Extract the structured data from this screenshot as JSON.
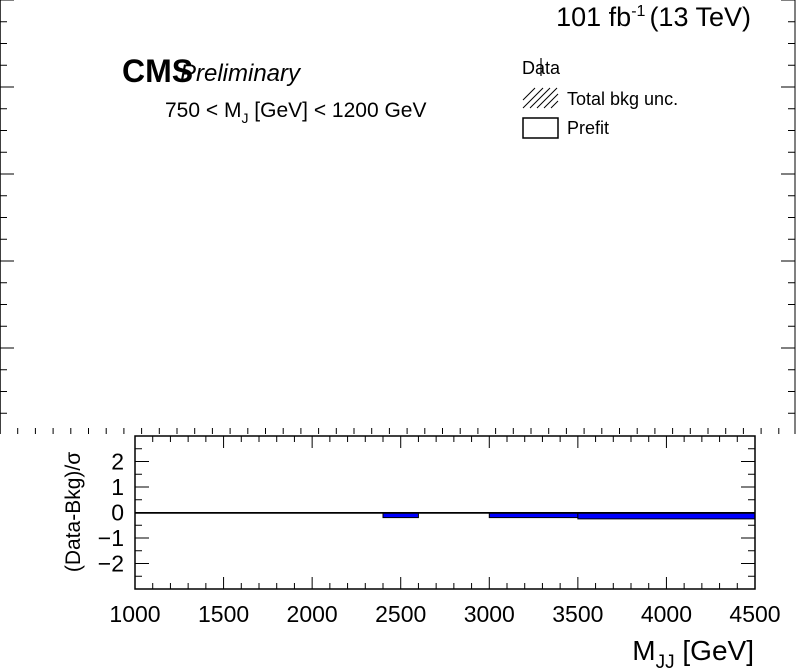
{
  "header": {
    "experiment": "CMS",
    "status": "Preliminary",
    "lumi_prefix": "101 fb",
    "lumi_exp": "-1",
    "energy": "(13 TeV)",
    "selection_prefix": "750 < M",
    "selection_sub": "J",
    "selection_suffix": " [GeV] < 1200 GeV"
  },
  "legend": {
    "position": "top-right",
    "entries": [
      {
        "label": "Data",
        "style": "marker"
      },
      {
        "label": "Total bkg unc.",
        "style": "hatched"
      },
      {
        "label": "Prefit",
        "style": "box"
      }
    ]
  },
  "chart_data": {
    "type": "bar",
    "panels": [
      "main",
      "ratio"
    ],
    "main_panel": {
      "has_content": false
    },
    "ratio_panel": {
      "ylabel": "(Data-Bkg)/σ",
      "ylim": [
        -3,
        3
      ],
      "yticks": [
        "2",
        "1",
        "0",
        "−1",
        "−2"
      ],
      "ytick_values": [
        2,
        1,
        0,
        -1,
        -2
      ],
      "bar_color": "#0000ff",
      "bins": [
        {
          "x_low": 1000,
          "x_high": 1200,
          "value": 0
        },
        {
          "x_low": 1200,
          "x_high": 1400,
          "value": 0
        },
        {
          "x_low": 1400,
          "x_high": 1600,
          "value": 0
        },
        {
          "x_low": 1600,
          "x_high": 1800,
          "value": 0
        },
        {
          "x_low": 1800,
          "x_high": 2000,
          "value": 0
        },
        {
          "x_low": 2000,
          "x_high": 2200,
          "value": 0
        },
        {
          "x_low": 2200,
          "x_high": 2400,
          "value": 0
        },
        {
          "x_low": 2400,
          "x_high": 2600,
          "value": -0.2
        },
        {
          "x_low": 2600,
          "x_high": 3000,
          "value": 0
        },
        {
          "x_low": 3000,
          "x_high": 3500,
          "value": -0.2
        },
        {
          "x_low": 3500,
          "x_high": 4500,
          "value": -0.25
        }
      ]
    },
    "x": {
      "label_main": "M",
      "label_sub": "JJ",
      "label_unit": " [GeV]",
      "xlim": [
        1000,
        4500
      ],
      "ticks": [
        "1000",
        "1500",
        "2000",
        "2500",
        "3000",
        "3500",
        "4000",
        "4500"
      ],
      "tick_values": [
        1000,
        1500,
        2000,
        2500,
        3000,
        3500,
        4000,
        4500
      ]
    }
  }
}
